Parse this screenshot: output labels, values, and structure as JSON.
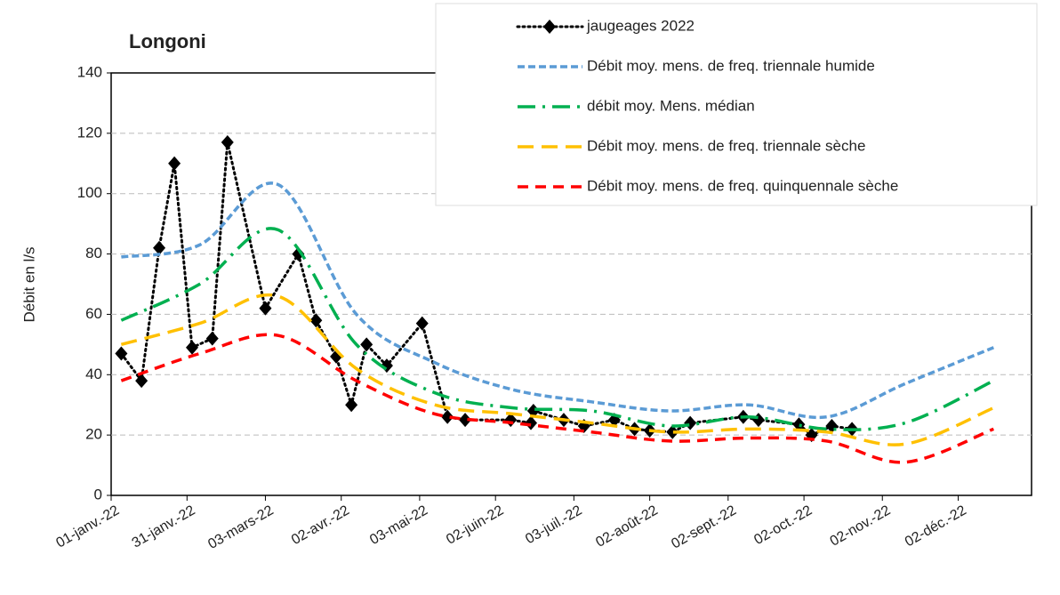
{
  "chart_data": {
    "type": "line",
    "title": "Longoni",
    "y_label": "Débit en l/s",
    "xlim": [
      "2022-01-01",
      "2022-12-31"
    ],
    "xticks": [
      {
        "value": "2022-01-01",
        "label": "01-janv.-22"
      },
      {
        "value": "2022-01-31",
        "label": "31-janv.-22"
      },
      {
        "value": "2022-03-03",
        "label": "03-mars-22"
      },
      {
        "value": "2022-04-02",
        "label": "02-avr.-22"
      },
      {
        "value": "2022-05-03",
        "label": "03-mai-22"
      },
      {
        "value": "2022-06-02",
        "label": "02-juin-22"
      },
      {
        "value": "2022-07-03",
        "label": "03-juil.-22"
      },
      {
        "value": "2022-08-02",
        "label": "02-août-22"
      },
      {
        "value": "2022-09-02",
        "label": "02-sept.-22"
      },
      {
        "value": "2022-10-02",
        "label": "02-oct.-22"
      },
      {
        "value": "2022-11-02",
        "label": "02-nov.-22"
      },
      {
        "value": "2022-12-02",
        "label": "02-déc.-22"
      }
    ],
    "ylim": [
      0,
      140
    ],
    "yticks": [
      0,
      20,
      40,
      60,
      80,
      100,
      120,
      140
    ],
    "grid": true,
    "legend": "top-right",
    "series": [
      {
        "name": "jaugeages 2022",
        "color": "#000000",
        "style": "dotted-markers",
        "x": [
          "2022-01-05",
          "2022-01-13",
          "2022-01-20",
          "2022-01-26",
          "2022-02-02",
          "2022-02-10",
          "2022-02-16",
          "2022-03-03",
          "2022-03-16",
          "2022-03-23",
          "2022-03-31",
          "2022-04-06",
          "2022-04-12",
          "2022-04-20",
          "2022-05-04",
          "2022-05-14",
          "2022-05-21",
          "2022-06-08",
          "2022-06-16",
          "2022-06-17",
          "2022-06-29",
          "2022-07-07",
          "2022-07-19",
          "2022-07-27",
          "2022-08-02",
          "2022-08-11",
          "2022-08-18",
          "2022-09-08",
          "2022-09-14",
          "2022-09-30",
          "2022-10-05",
          "2022-10-13",
          "2022-10-21"
        ],
        "values": [
          47,
          38,
          82,
          110,
          49,
          52,
          117,
          62,
          80,
          58,
          46,
          30,
          50,
          43,
          57,
          26,
          25,
          25,
          24,
          28,
          25,
          23,
          25,
          22,
          21.5,
          21,
          24,
          26,
          25,
          23.5,
          20,
          23,
          22
        ]
      },
      {
        "name": "Débit moy. mens. de freq. triennale humide",
        "color": "#5b9bd5",
        "style": "dashed-short",
        "x": [
          "2022-01-05",
          "2022-02-05",
          "2022-03-08",
          "2022-04-08",
          "2022-05-09",
          "2022-06-09",
          "2022-07-10",
          "2022-08-10",
          "2022-09-10",
          "2022-10-11",
          "2022-11-11",
          "2022-12-16"
        ],
        "values": [
          79,
          83,
          103,
          60,
          44,
          35,
          31,
          28,
          30,
          26,
          37,
          49
        ]
      },
      {
        "name": "débit moy. Mens. médian",
        "color": "#00b050",
        "style": "dash-dot",
        "x": [
          "2022-01-05",
          "2022-02-05",
          "2022-03-08",
          "2022-04-08",
          "2022-05-09",
          "2022-06-09",
          "2022-07-10",
          "2022-08-10",
          "2022-09-10",
          "2022-10-11",
          "2022-11-11",
          "2022-12-16"
        ],
        "values": [
          58,
          70,
          88,
          50,
          34,
          29,
          28,
          23,
          26,
          22,
          24,
          38
        ]
      },
      {
        "name": "Débit moy. mens. de freq. triennale sèche",
        "color": "#ffc000",
        "style": "dashed-long",
        "x": [
          "2022-01-05",
          "2022-02-05",
          "2022-03-08",
          "2022-04-08",
          "2022-05-09",
          "2022-06-09",
          "2022-07-10",
          "2022-08-10",
          "2022-09-10",
          "2022-10-11",
          "2022-11-11",
          "2022-12-16"
        ],
        "values": [
          50,
          57,
          66,
          42,
          30,
          27,
          24,
          21,
          22,
          21,
          17,
          29
        ]
      },
      {
        "name": "Débit moy. mens. de freq. quinquennale sèche",
        "color": "#ff0000",
        "style": "dashed",
        "x": [
          "2022-01-05",
          "2022-02-05",
          "2022-03-08",
          "2022-04-08",
          "2022-05-09",
          "2022-06-09",
          "2022-07-10",
          "2022-08-10",
          "2022-09-10",
          "2022-10-11",
          "2022-11-11",
          "2022-12-16"
        ],
        "values": [
          38,
          47,
          53,
          38,
          27,
          24,
          21,
          18,
          19,
          18,
          11,
          22
        ]
      }
    ]
  }
}
